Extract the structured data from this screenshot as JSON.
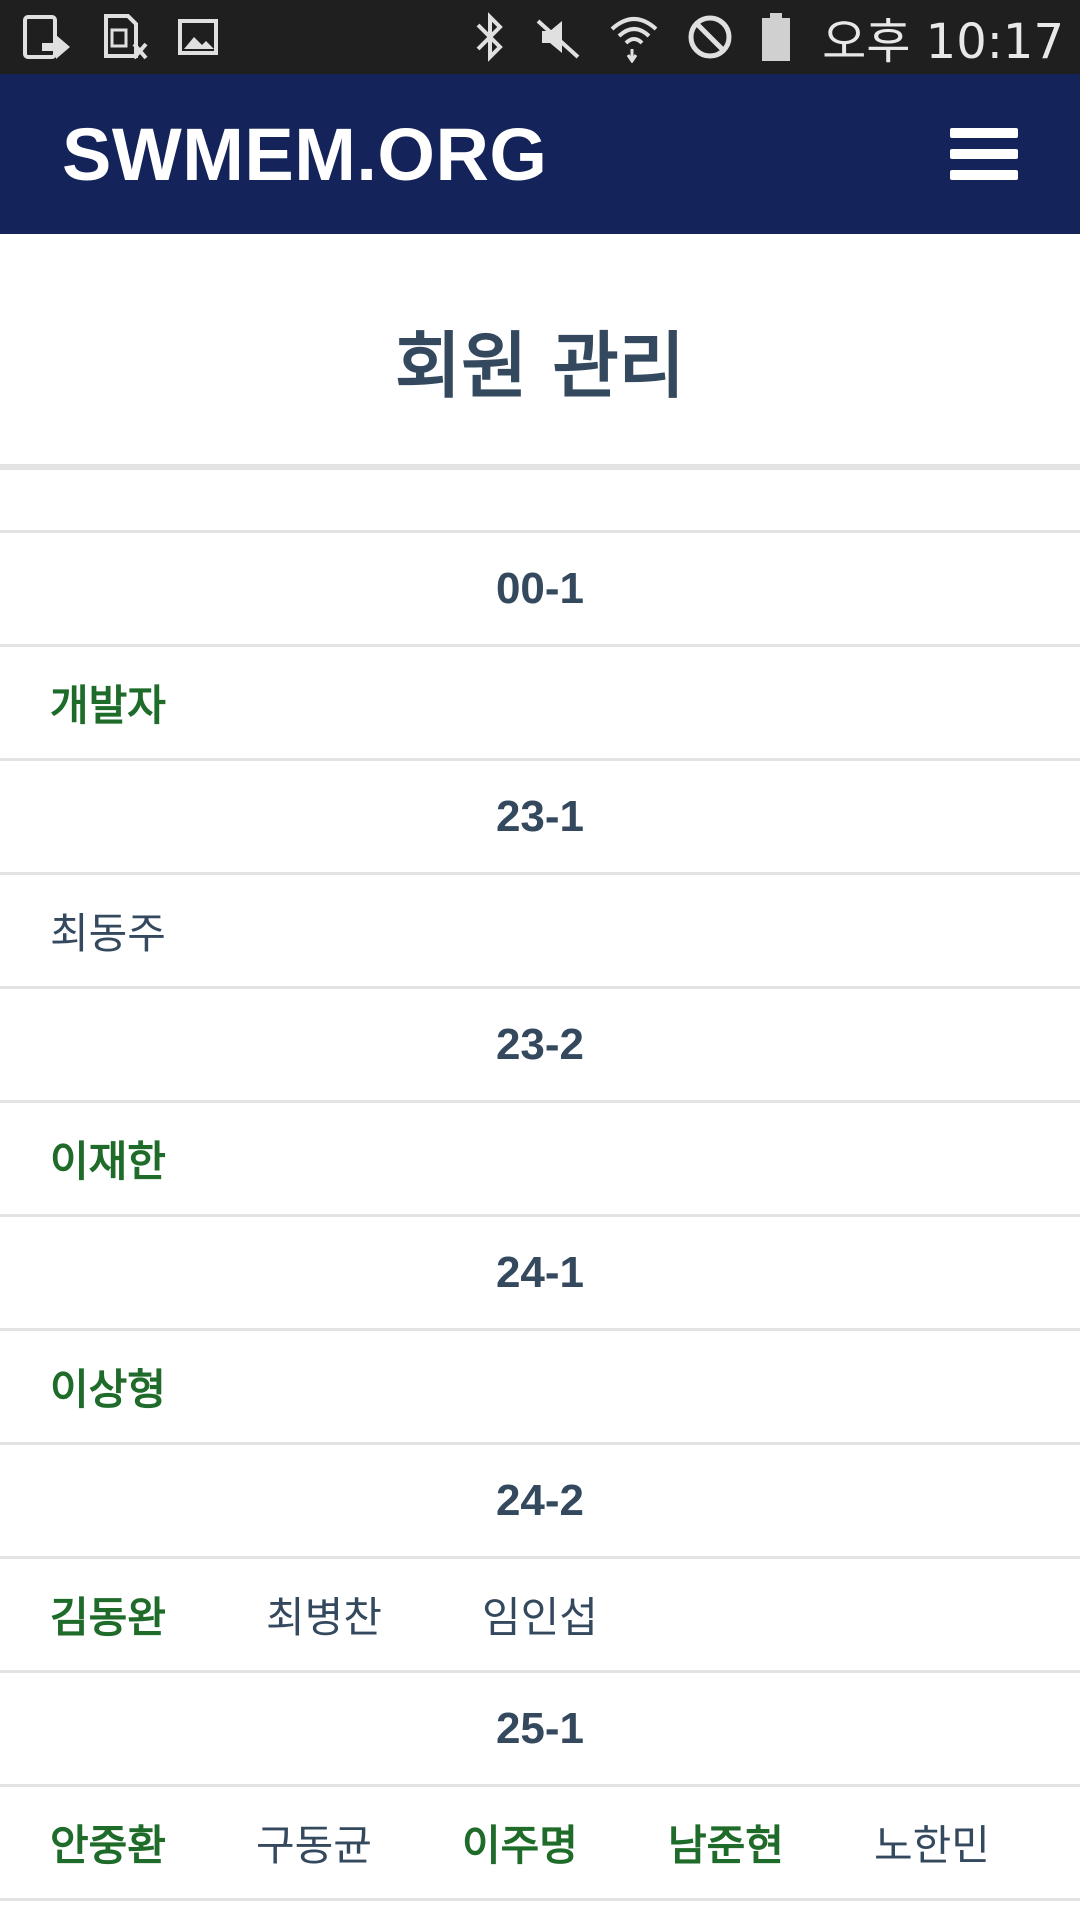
{
  "status_bar": {
    "time": "오후 10:17",
    "left_icons": [
      "screenshot-icon",
      "sim-card-off-icon",
      "image-icon"
    ],
    "right_icons": [
      "bluetooth-icon",
      "mute-icon",
      "wifi-icon",
      "block-icon",
      "battery-icon"
    ]
  },
  "header": {
    "brand": "SWMEM.ORG",
    "menu_icon": "hamburger-menu-icon"
  },
  "page": {
    "title": "회원 관리"
  },
  "groups": [
    {
      "label": "00-1",
      "members": [
        {
          "name": "개발자",
          "highlight": true
        }
      ]
    },
    {
      "label": "23-1",
      "members": [
        {
          "name": "최동주",
          "highlight": false
        }
      ]
    },
    {
      "label": "23-2",
      "members": [
        {
          "name": "이재한",
          "highlight": true
        }
      ]
    },
    {
      "label": "24-1",
      "members": [
        {
          "name": "이상형",
          "highlight": true
        }
      ]
    },
    {
      "label": "24-2",
      "members": [
        {
          "name": "김동완",
          "highlight": true
        },
        {
          "name": "최병찬",
          "highlight": false
        },
        {
          "name": "임인섭",
          "highlight": false
        }
      ]
    },
    {
      "label": "25-1",
      "members": [
        {
          "name": "안중환",
          "highlight": true
        },
        {
          "name": "구동균",
          "highlight": false
        },
        {
          "name": "이주명",
          "highlight": true
        },
        {
          "name": "남준현",
          "highlight": true
        },
        {
          "name": "노한민",
          "highlight": false
        }
      ]
    }
  ],
  "colors": {
    "header_bg": "#14235a",
    "status_bg": "#1f1f1f",
    "text": "#34495e",
    "highlight": "#1e6b2a",
    "divider": "#e3e3e3"
  }
}
